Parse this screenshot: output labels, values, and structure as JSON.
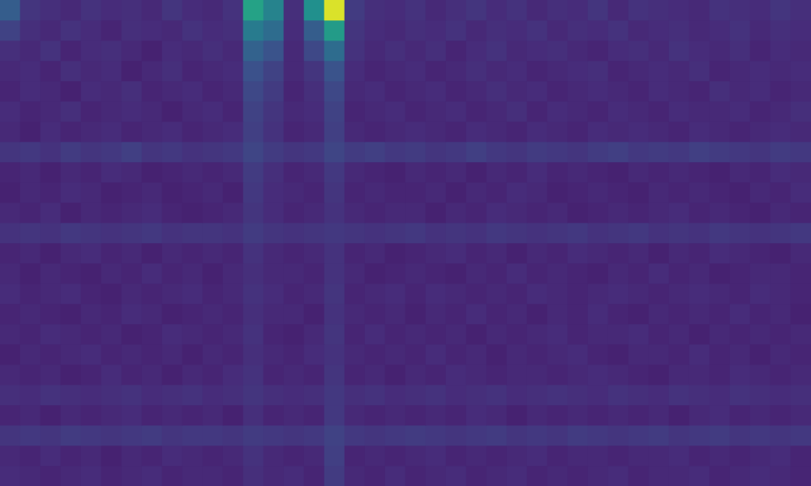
{
  "chart_data": {
    "type": "heatmap",
    "color": "viridis",
    "clim": [
      0,
      1
    ],
    "tick_labels": false,
    "grid": false,
    "cells": [
      [
        0.3,
        0.16,
        0.14,
        0.12,
        0.15,
        0.13,
        0.14,
        0.12,
        0.16,
        0.13,
        0.12,
        0.15,
        0.58,
        0.45,
        0.14,
        0.5,
        0.95,
        0.18,
        0.14,
        0.13,
        0.15,
        0.12,
        0.14,
        0.16,
        0.13,
        0.15,
        0.12,
        0.14,
        0.13,
        0.16,
        0.12,
        0.15,
        0.14,
        0.13,
        0.12,
        0.15,
        0.14,
        0.13,
        0.16,
        0.14
      ],
      [
        0.2,
        0.14,
        0.12,
        0.15,
        0.13,
        0.11,
        0.14,
        0.13,
        0.12,
        0.15,
        0.13,
        0.14,
        0.42,
        0.36,
        0.13,
        0.3,
        0.55,
        0.16,
        0.13,
        0.12,
        0.14,
        0.13,
        0.15,
        0.12,
        0.14,
        0.13,
        0.15,
        0.12,
        0.14,
        0.13,
        0.15,
        0.12,
        0.13,
        0.14,
        0.12,
        0.13,
        0.15,
        0.12,
        0.14,
        0.13
      ],
      [
        0.14,
        0.12,
        0.15,
        0.11,
        0.13,
        0.14,
        0.12,
        0.1,
        0.13,
        0.12,
        0.14,
        0.12,
        0.32,
        0.26,
        0.12,
        0.22,
        0.36,
        0.15,
        0.12,
        0.14,
        0.12,
        0.14,
        0.11,
        0.13,
        0.15,
        0.12,
        0.13,
        0.14,
        0.12,
        0.11,
        0.13,
        0.14,
        0.12,
        0.15,
        0.13,
        0.12,
        0.14,
        0.11,
        0.13,
        0.12
      ],
      [
        0.12,
        0.13,
        0.11,
        0.14,
        0.12,
        0.13,
        0.1,
        0.12,
        0.14,
        0.11,
        0.12,
        0.13,
        0.25,
        0.2,
        0.12,
        0.16,
        0.26,
        0.13,
        0.11,
        0.12,
        0.13,
        0.11,
        0.12,
        0.14,
        0.12,
        0.13,
        0.11,
        0.12,
        0.13,
        0.14,
        0.11,
        0.12,
        0.13,
        0.12,
        0.14,
        0.11,
        0.12,
        0.13,
        0.12,
        0.13
      ],
      [
        0.11,
        0.13,
        0.12,
        0.1,
        0.13,
        0.12,
        0.14,
        0.11,
        0.12,
        0.13,
        0.11,
        0.12,
        0.22,
        0.18,
        0.11,
        0.14,
        0.22,
        0.12,
        0.13,
        0.11,
        0.12,
        0.13,
        0.11,
        0.12,
        0.14,
        0.12,
        0.13,
        0.11,
        0.12,
        0.13,
        0.12,
        0.11,
        0.13,
        0.12,
        0.11,
        0.14,
        0.12,
        0.13,
        0.11,
        0.12
      ],
      [
        0.13,
        0.11,
        0.12,
        0.14,
        0.11,
        0.12,
        0.13,
        0.12,
        0.1,
        0.12,
        0.13,
        0.11,
        0.2,
        0.16,
        0.12,
        0.13,
        0.2,
        0.11,
        0.12,
        0.13,
        0.11,
        0.12,
        0.13,
        0.11,
        0.12,
        0.14,
        0.11,
        0.13,
        0.12,
        0.11,
        0.13,
        0.12,
        0.11,
        0.13,
        0.12,
        0.12,
        0.13,
        0.11,
        0.12,
        0.14
      ],
      [
        0.12,
        0.1,
        0.13,
        0.11,
        0.12,
        0.13,
        0.11,
        0.12,
        0.13,
        0.11,
        0.12,
        0.13,
        0.19,
        0.15,
        0.11,
        0.12,
        0.19,
        0.12,
        0.11,
        0.12,
        0.13,
        0.12,
        0.11,
        0.13,
        0.12,
        0.11,
        0.13,
        0.12,
        0.11,
        0.13,
        0.12,
        0.13,
        0.12,
        0.11,
        0.13,
        0.12,
        0.11,
        0.12,
        0.13,
        0.12
      ],
      [
        0.16,
        0.17,
        0.15,
        0.18,
        0.16,
        0.17,
        0.19,
        0.16,
        0.17,
        0.15,
        0.16,
        0.17,
        0.21,
        0.18,
        0.16,
        0.17,
        0.21,
        0.18,
        0.19,
        0.17,
        0.18,
        0.16,
        0.17,
        0.19,
        0.17,
        0.16,
        0.18,
        0.17,
        0.16,
        0.18,
        0.19,
        0.17,
        0.18,
        0.17,
        0.19,
        0.18,
        0.17,
        0.16,
        0.18,
        0.17
      ],
      [
        0.11,
        0.12,
        0.1,
        0.12,
        0.11,
        0.13,
        0.12,
        0.1,
        0.11,
        0.12,
        0.11,
        0.12,
        0.18,
        0.14,
        0.11,
        0.12,
        0.17,
        0.12,
        0.11,
        0.1,
        0.12,
        0.11,
        0.12,
        0.1,
        0.12,
        0.11,
        0.13,
        0.11,
        0.12,
        0.11,
        0.1,
        0.12,
        0.11,
        0.12,
        0.11,
        0.1,
        0.12,
        0.11,
        0.13,
        0.12
      ],
      [
        0.1,
        0.12,
        0.11,
        0.13,
        0.12,
        0.1,
        0.11,
        0.12,
        0.1,
        0.11,
        0.12,
        0.1,
        0.17,
        0.13,
        0.12,
        0.11,
        0.16,
        0.11,
        0.12,
        0.11,
        0.11,
        0.12,
        0.1,
        0.12,
        0.11,
        0.13,
        0.12,
        0.1,
        0.11,
        0.12,
        0.11,
        0.1,
        0.12,
        0.11,
        0.12,
        0.11,
        0.1,
        0.12,
        0.11,
        0.13
      ],
      [
        0.12,
        0.11,
        0.13,
        0.1,
        0.12,
        0.11,
        0.12,
        0.13,
        0.11,
        0.1,
        0.11,
        0.12,
        0.16,
        0.13,
        0.11,
        0.12,
        0.15,
        0.12,
        0.11,
        0.12,
        0.12,
        0.1,
        0.12,
        0.11,
        0.13,
        0.12,
        0.11,
        0.12,
        0.1,
        0.11,
        0.12,
        0.11,
        0.12,
        0.13,
        0.11,
        0.12,
        0.11,
        0.1,
        0.12,
        0.11
      ],
      [
        0.15,
        0.16,
        0.15,
        0.17,
        0.16,
        0.15,
        0.16,
        0.17,
        0.15,
        0.16,
        0.16,
        0.15,
        0.18,
        0.16,
        0.15,
        0.16,
        0.17,
        0.16,
        0.15,
        0.16,
        0.17,
        0.15,
        0.16,
        0.15,
        0.17,
        0.16,
        0.15,
        0.16,
        0.17,
        0.15,
        0.16,
        0.17,
        0.15,
        0.16,
        0.15,
        0.17,
        0.16,
        0.15,
        0.16,
        0.17
      ],
      [
        0.11,
        0.12,
        0.1,
        0.12,
        0.13,
        0.11,
        0.12,
        0.1,
        0.12,
        0.11,
        0.12,
        0.11,
        0.15,
        0.12,
        0.11,
        0.12,
        0.15,
        0.11,
        0.12,
        0.1,
        0.11,
        0.12,
        0.13,
        0.11,
        0.12,
        0.1,
        0.12,
        0.11,
        0.13,
        0.12,
        0.11,
        0.12,
        0.1,
        0.12,
        0.11,
        0.13,
        0.12,
        0.11,
        0.1,
        0.12
      ],
      [
        0.12,
        0.1,
        0.12,
        0.11,
        0.1,
        0.12,
        0.11,
        0.13,
        0.11,
        0.12,
        0.1,
        0.12,
        0.14,
        0.12,
        0.12,
        0.11,
        0.15,
        0.12,
        0.1,
        0.11,
        0.12,
        0.11,
        0.1,
        0.12,
        0.11,
        0.13,
        0.11,
        0.12,
        0.11,
        0.1,
        0.12,
        0.11,
        0.13,
        0.11,
        0.12,
        0.1,
        0.11,
        0.12,
        0.12,
        0.11
      ],
      [
        0.13,
        0.11,
        0.12,
        0.13,
        0.11,
        0.1,
        0.12,
        0.11,
        0.12,
        0.13,
        0.11,
        0.12,
        0.15,
        0.13,
        0.11,
        0.12,
        0.16,
        0.11,
        0.12,
        0.13,
        0.11,
        0.13,
        0.12,
        0.11,
        0.12,
        0.11,
        0.13,
        0.12,
        0.11,
        0.12,
        0.13,
        0.12,
        0.11,
        0.12,
        0.13,
        0.12,
        0.11,
        0.13,
        0.12,
        0.11
      ],
      [
        0.11,
        0.12,
        0.11,
        0.1,
        0.12,
        0.11,
        0.13,
        0.12,
        0.1,
        0.11,
        0.12,
        0.11,
        0.14,
        0.12,
        0.12,
        0.1,
        0.15,
        0.12,
        0.11,
        0.12,
        0.1,
        0.12,
        0.11,
        0.13,
        0.11,
        0.12,
        0.1,
        0.12,
        0.11,
        0.13,
        0.11,
        0.1,
        0.12,
        0.11,
        0.12,
        0.11,
        0.13,
        0.11,
        0.12,
        0.1
      ],
      [
        0.12,
        0.11,
        0.13,
        0.12,
        0.11,
        0.12,
        0.1,
        0.11,
        0.13,
        0.12,
        0.11,
        0.12,
        0.15,
        0.11,
        0.1,
        0.12,
        0.16,
        0.11,
        0.13,
        0.11,
        0.12,
        0.11,
        0.12,
        0.1,
        0.12,
        0.11,
        0.12,
        0.13,
        0.11,
        0.12,
        0.12,
        0.13,
        0.11,
        0.12,
        0.1,
        0.12,
        0.11,
        0.12,
        0.11,
        0.12
      ],
      [
        0.1,
        0.12,
        0.11,
        0.12,
        0.13,
        0.11,
        0.12,
        0.11,
        0.12,
        0.1,
        0.12,
        0.11,
        0.14,
        0.12,
        0.11,
        0.13,
        0.15,
        0.12,
        0.11,
        0.12,
        0.11,
        0.13,
        0.11,
        0.12,
        0.1,
        0.12,
        0.11,
        0.12,
        0.13,
        0.11,
        0.1,
        0.12,
        0.12,
        0.11,
        0.13,
        0.11,
        0.12,
        0.1,
        0.12,
        0.11
      ],
      [
        0.12,
        0.11,
        0.12,
        0.1,
        0.11,
        0.13,
        0.11,
        0.12,
        0.1,
        0.12,
        0.11,
        0.13,
        0.15,
        0.11,
        0.12,
        0.11,
        0.16,
        0.11,
        0.12,
        0.1,
        0.12,
        0.11,
        0.13,
        0.12,
        0.11,
        0.12,
        0.12,
        0.11,
        0.12,
        0.13,
        0.12,
        0.11,
        0.1,
        0.12,
        0.12,
        0.11,
        0.13,
        0.12,
        0.11,
        0.12
      ],
      [
        0.14,
        0.13,
        0.15,
        0.14,
        0.13,
        0.14,
        0.15,
        0.13,
        0.14,
        0.15,
        0.13,
        0.14,
        0.16,
        0.14,
        0.13,
        0.14,
        0.17,
        0.14,
        0.15,
        0.13,
        0.14,
        0.15,
        0.13,
        0.14,
        0.15,
        0.13,
        0.14,
        0.15,
        0.14,
        0.13,
        0.15,
        0.14,
        0.13,
        0.15,
        0.14,
        0.13,
        0.15,
        0.14,
        0.13,
        0.14
      ],
      [
        0.11,
        0.12,
        0.1,
        0.12,
        0.11,
        0.12,
        0.13,
        0.11,
        0.12,
        0.11,
        0.12,
        0.1,
        0.14,
        0.11,
        0.12,
        0.11,
        0.17,
        0.12,
        0.11,
        0.12,
        0.11,
        0.12,
        0.11,
        0.13,
        0.12,
        0.1,
        0.12,
        0.11,
        0.12,
        0.11,
        0.12,
        0.11,
        0.12,
        0.1,
        0.12,
        0.13,
        0.11,
        0.12,
        0.11,
        0.12
      ],
      [
        0.16,
        0.17,
        0.16,
        0.18,
        0.17,
        0.16,
        0.17,
        0.18,
        0.16,
        0.17,
        0.17,
        0.16,
        0.18,
        0.17,
        0.16,
        0.17,
        0.2,
        0.17,
        0.16,
        0.17,
        0.18,
        0.17,
        0.16,
        0.17,
        0.18,
        0.16,
        0.17,
        0.16,
        0.18,
        0.17,
        0.16,
        0.17,
        0.18,
        0.16,
        0.17,
        0.18,
        0.16,
        0.17,
        0.16,
        0.17
      ],
      [
        0.12,
        0.11,
        0.13,
        0.11,
        0.12,
        0.1,
        0.12,
        0.11,
        0.13,
        0.12,
        0.11,
        0.12,
        0.15,
        0.12,
        0.11,
        0.12,
        0.19,
        0.11,
        0.12,
        0.11,
        0.12,
        0.13,
        0.11,
        0.12,
        0.11,
        0.12,
        0.13,
        0.11,
        0.12,
        0.12,
        0.11,
        0.12,
        0.12,
        0.13,
        0.11,
        0.12,
        0.11,
        0.12,
        0.13,
        0.11
      ],
      [
        0.13,
        0.12,
        0.11,
        0.12,
        0.13,
        0.11,
        0.12,
        0.13,
        0.11,
        0.12,
        0.12,
        0.11,
        0.14,
        0.12,
        0.13,
        0.11,
        0.18,
        0.12,
        0.11,
        0.13,
        0.11,
        0.12,
        0.13,
        0.11,
        0.12,
        0.13,
        0.11,
        0.12,
        0.11,
        0.12,
        0.13,
        0.11,
        0.12,
        0.12,
        0.13,
        0.11,
        0.12,
        0.13,
        0.12,
        0.11
      ]
    ]
  }
}
